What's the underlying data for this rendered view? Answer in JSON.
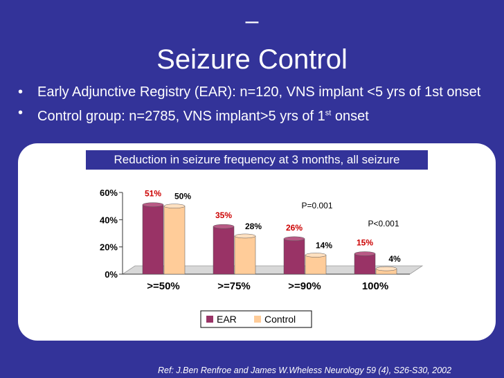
{
  "slide": {
    "title_dash": "–",
    "title": "Seizure Control",
    "bullets": [
      {
        "mark": "•",
        "text": "Early Adjunctive Registry (EAR): n=120, VNS implant <5 yrs of 1st onset"
      },
      {
        "mark": "•",
        "text_a": "Control group: n=2785, VNS implant>5 yrs of 1",
        "sup": "st",
        "text_b": " onset"
      }
    ],
    "reference": "Ref: J.Ben Renfroe and James W.Wheless Neurology 59 (4), S26-S30, 2002"
  },
  "colors": {
    "background": "#333399",
    "ear": "#993366",
    "control": "#FFCC99",
    "ear_label": "#CC0000"
  },
  "chart_data": {
    "type": "bar",
    "title": "Reduction in seizure frequency at 3 months, all seizure",
    "categories": [
      ">=50%",
      ">=75%",
      ">=90%",
      "100%"
    ],
    "series": [
      {
        "name": "EAR",
        "values": [
          51,
          35,
          26,
          15
        ],
        "labels": [
          "51%",
          "35%",
          "26%",
          "15%"
        ]
      },
      {
        "name": "Control",
        "values": [
          50,
          28,
          14,
          4
        ],
        "labels": [
          "50%",
          "28%",
          "14%",
          "4%"
        ]
      }
    ],
    "ylim": [
      0,
      60
    ],
    "yticks": [
      0,
      20,
      40,
      60
    ],
    "ytick_labels": [
      "0%",
      "20%",
      "40%",
      "60%"
    ],
    "annotations": [
      "P=0.001",
      "P<0.001"
    ],
    "legend": {
      "position": "bottom",
      "entries": [
        "EAR",
        "Control"
      ]
    }
  }
}
